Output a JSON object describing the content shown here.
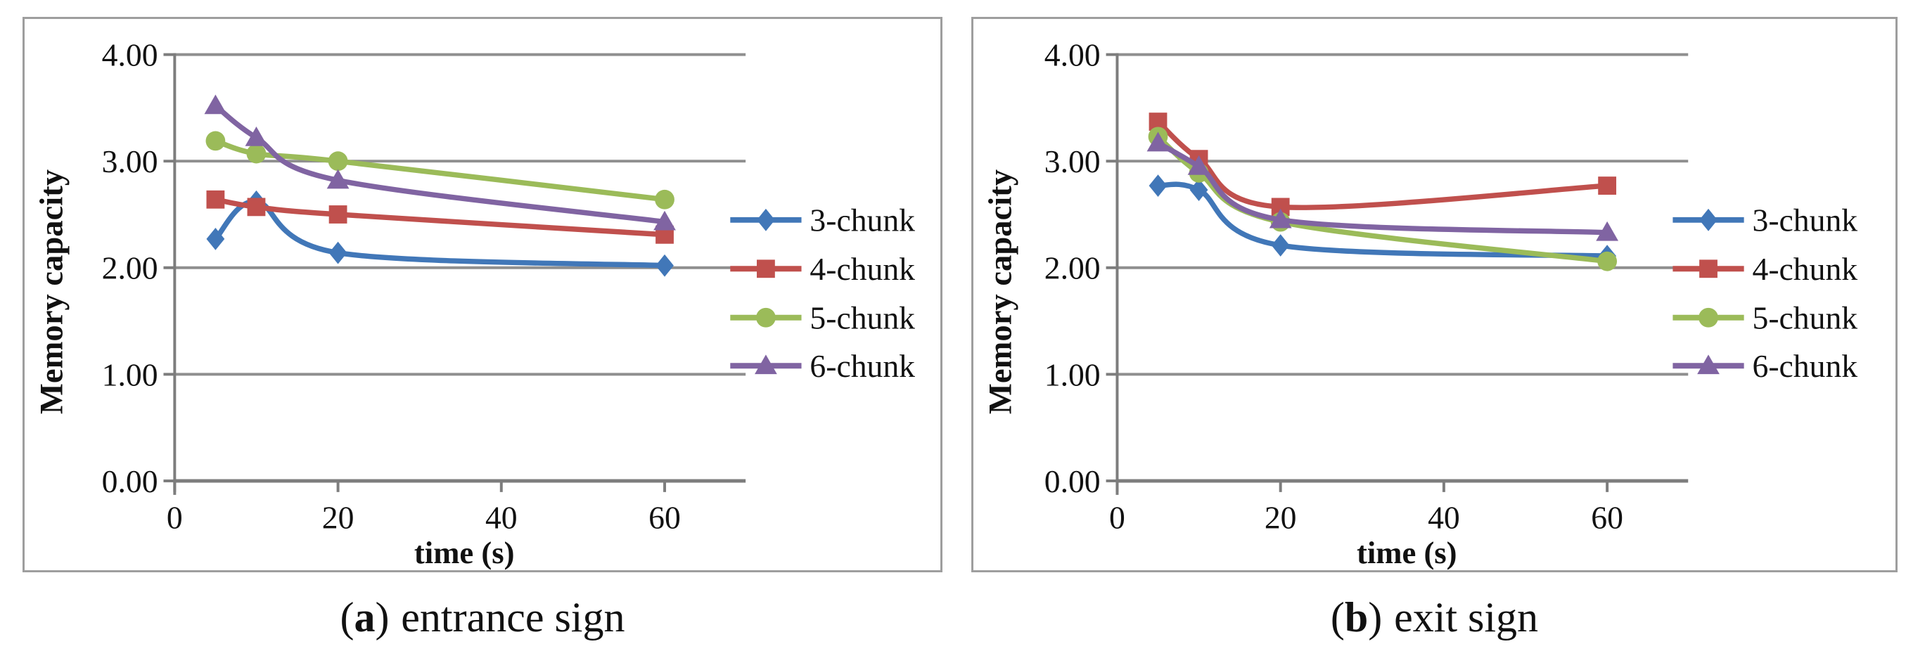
{
  "figure": {
    "background": "#ffffff",
    "panel_border_color": "#9e9e9e",
    "grid_color": "#8f8f8f",
    "axis_color": "#7d7d7d",
    "text_color": "#111111"
  },
  "chart_data": [
    {
      "type": "line",
      "panel_id": "a",
      "caption": {
        "open": "(",
        "letter": "a",
        "close": ")",
        "text": "entrance sign"
      },
      "xlabel": "time (s)",
      "ylabel": "Memory capacity",
      "x": [
        5,
        10,
        20,
        60
      ],
      "xlim": [
        0,
        70
      ],
      "ylim": [
        0,
        4
      ],
      "xtick_values": [
        0,
        20,
        40,
        60
      ],
      "xtick_labels": [
        "0",
        "20",
        "40",
        "60"
      ],
      "ytick_values": [
        0,
        1,
        2,
        3,
        4
      ],
      "ytick_labels": [
        "0.00",
        "1.00",
        "2.00",
        "3.00",
        "4.00"
      ],
      "grid": "horizontal",
      "smooth": true,
      "legend_position": "right",
      "series": [
        {
          "name": "3-chunk",
          "color": "#4177b8",
          "marker": "diamond",
          "values": [
            2.27,
            2.62,
            2.14,
            2.02
          ]
        },
        {
          "name": "4-chunk",
          "color": "#c0504d",
          "marker": "square",
          "values": [
            2.64,
            2.57,
            2.5,
            2.31
          ]
        },
        {
          "name": "5-chunk",
          "color": "#9bbb59",
          "marker": "circle",
          "values": [
            3.19,
            3.07,
            3.0,
            2.64
          ]
        },
        {
          "name": "6-chunk",
          "color": "#8064a2",
          "marker": "triangle",
          "values": [
            3.52,
            3.22,
            2.82,
            2.43
          ]
        }
      ]
    },
    {
      "type": "line",
      "panel_id": "b",
      "caption": {
        "open": "(",
        "letter": "b",
        "close": ")",
        "text": "exit sign"
      },
      "xlabel": "time (s)",
      "ylabel": "Memory capacity",
      "x": [
        5,
        10,
        20,
        60
      ],
      "xlim": [
        0,
        70
      ],
      "ylim": [
        0,
        4
      ],
      "xtick_values": [
        0,
        20,
        40,
        60
      ],
      "xtick_labels": [
        "0",
        "20",
        "40",
        "60"
      ],
      "ytick_values": [
        0,
        1,
        2,
        3,
        4
      ],
      "ytick_labels": [
        "0.00",
        "1.00",
        "2.00",
        "3.00",
        "4.00"
      ],
      "grid": "horizontal",
      "smooth": true,
      "legend_position": "right",
      "series": [
        {
          "name": "3-chunk",
          "color": "#4177b8",
          "marker": "diamond",
          "values": [
            2.77,
            2.73,
            2.21,
            2.11
          ]
        },
        {
          "name": "4-chunk",
          "color": "#c0504d",
          "marker": "square",
          "values": [
            3.37,
            3.02,
            2.57,
            2.77
          ]
        },
        {
          "name": "5-chunk",
          "color": "#9bbb59",
          "marker": "circle",
          "values": [
            3.23,
            2.89,
            2.43,
            2.06
          ]
        },
        {
          "name": "6-chunk",
          "color": "#8064a2",
          "marker": "triangle",
          "values": [
            3.17,
            2.95,
            2.45,
            2.33
          ]
        }
      ]
    }
  ]
}
